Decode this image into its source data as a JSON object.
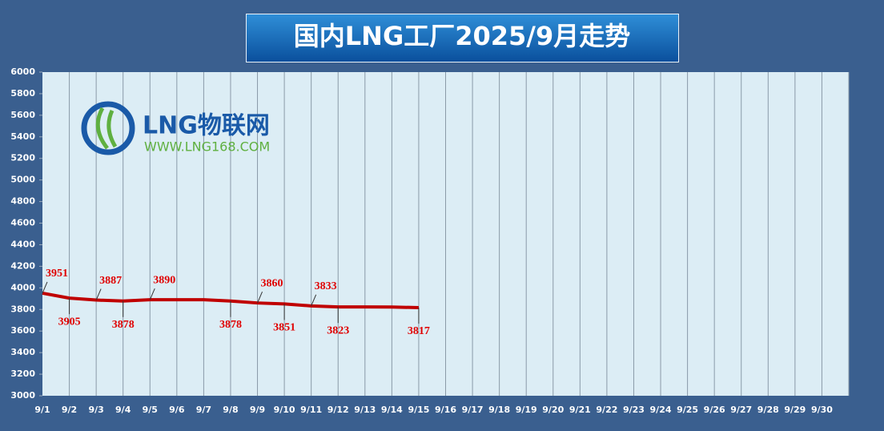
{
  "chart_data": {
    "type": "line",
    "title": "国内LNG工厂2025/9月走势",
    "watermark": {
      "name": "LNG物联网",
      "url": "WWW.LNG168.COM"
    },
    "categories": [
      "9/1",
      "9/2",
      "9/3",
      "9/4",
      "9/5",
      "9/6",
      "9/7",
      "9/8",
      "9/9",
      "9/10",
      "9/11",
      "9/12",
      "9/13",
      "9/14",
      "9/15",
      "9/16",
      "9/17",
      "9/18",
      "9/19",
      "9/20",
      "9/21",
      "9/22",
      "9/23",
      "9/24",
      "9/25",
      "9/26",
      "9/27",
      "9/28",
      "9/29",
      "9/30"
    ],
    "series": [
      {
        "name": "LNG",
        "color": "#c00000",
        "values": [
          3951,
          3905,
          3887,
          3878,
          3890,
          3890,
          3890,
          3878,
          3860,
          3851,
          3833,
          3823,
          3823,
          3822,
          3817,
          null,
          null,
          null,
          null,
          null,
          null,
          null,
          null,
          null,
          null,
          null,
          null,
          null,
          null,
          null
        ],
        "value_labels": [
          "3951",
          "3905",
          "3887",
          "3878",
          "3890",
          null,
          null,
          "3878",
          "3860",
          "3851",
          "3833",
          "3823",
          null,
          null,
          "3817",
          null,
          null,
          null,
          null,
          null,
          null,
          null,
          null,
          null,
          null,
          null,
          null,
          null,
          null,
          null
        ]
      }
    ],
    "ylim": [
      3000,
      6000
    ],
    "yticks": [
      3000,
      3200,
      3400,
      3600,
      3800,
      4000,
      4200,
      4400,
      4600,
      4800,
      5000,
      5200,
      5400,
      5600,
      5800,
      6000
    ],
    "grid": "x"
  }
}
